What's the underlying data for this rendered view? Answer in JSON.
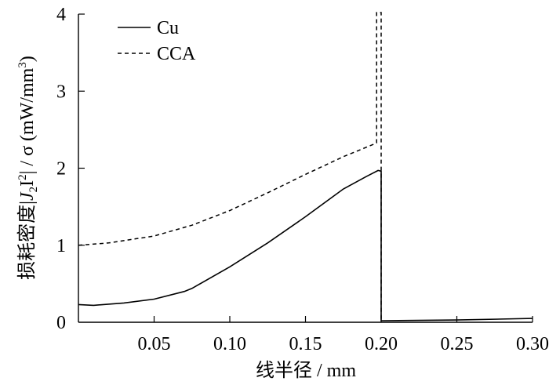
{
  "chart_data": {
    "type": "line",
    "xlabel": "线半径 / mm",
    "ylabel_prefix": "损耗密度|",
    "ylabel_J": "J",
    "ylabel_Jsub": "2",
    "ylabel_I": "I",
    "ylabel_Isup": "2",
    "ylabel_suffix": "| / σ (mW/mm",
    "ylabel_unitsup": "3",
    "ylabel_close": ")",
    "xlim": [
      0,
      0.3
    ],
    "ylim": [
      0,
      4
    ],
    "x_ticks": [
      0.05,
      0.1,
      0.15,
      0.2,
      0.25,
      0.3
    ],
    "x_tick_labels": [
      "0.05",
      "0.10",
      "0.15",
      "0.20",
      "0.25",
      "0.30"
    ],
    "y_ticks": [
      0,
      1,
      2,
      3,
      4
    ],
    "y_tick_labels": [
      "0",
      "1",
      "2",
      "3",
      "4"
    ],
    "legend_position": "top-left",
    "series": [
      {
        "name": "Cu",
        "style": "solid",
        "points": [
          [
            0.0,
            0.23
          ],
          [
            0.01,
            0.22
          ],
          [
            0.03,
            0.25
          ],
          [
            0.05,
            0.3
          ],
          [
            0.07,
            0.4
          ],
          [
            0.075,
            0.44
          ],
          [
            0.1,
            0.72
          ],
          [
            0.125,
            1.03
          ],
          [
            0.15,
            1.37
          ],
          [
            0.175,
            1.73
          ],
          [
            0.19,
            1.89
          ],
          [
            0.198,
            1.97
          ],
          [
            0.2,
            1.96
          ],
          [
            0.2,
            0.02
          ],
          [
            0.25,
            0.03
          ],
          [
            0.3,
            0.05
          ]
        ]
      },
      {
        "name": "CCA",
        "style": "dashed",
        "points": [
          [
            0.0,
            1.0
          ],
          [
            0.02,
            1.03
          ],
          [
            0.05,
            1.12
          ],
          [
            0.075,
            1.26
          ],
          [
            0.1,
            1.45
          ],
          [
            0.125,
            1.68
          ],
          [
            0.15,
            1.92
          ],
          [
            0.175,
            2.15
          ],
          [
            0.195,
            2.31
          ],
          [
            0.197,
            2.33
          ],
          [
            0.197,
            4.02
          ],
          [
            0.2,
            4.02
          ],
          [
            0.2,
            0.02
          ]
        ]
      }
    ]
  }
}
